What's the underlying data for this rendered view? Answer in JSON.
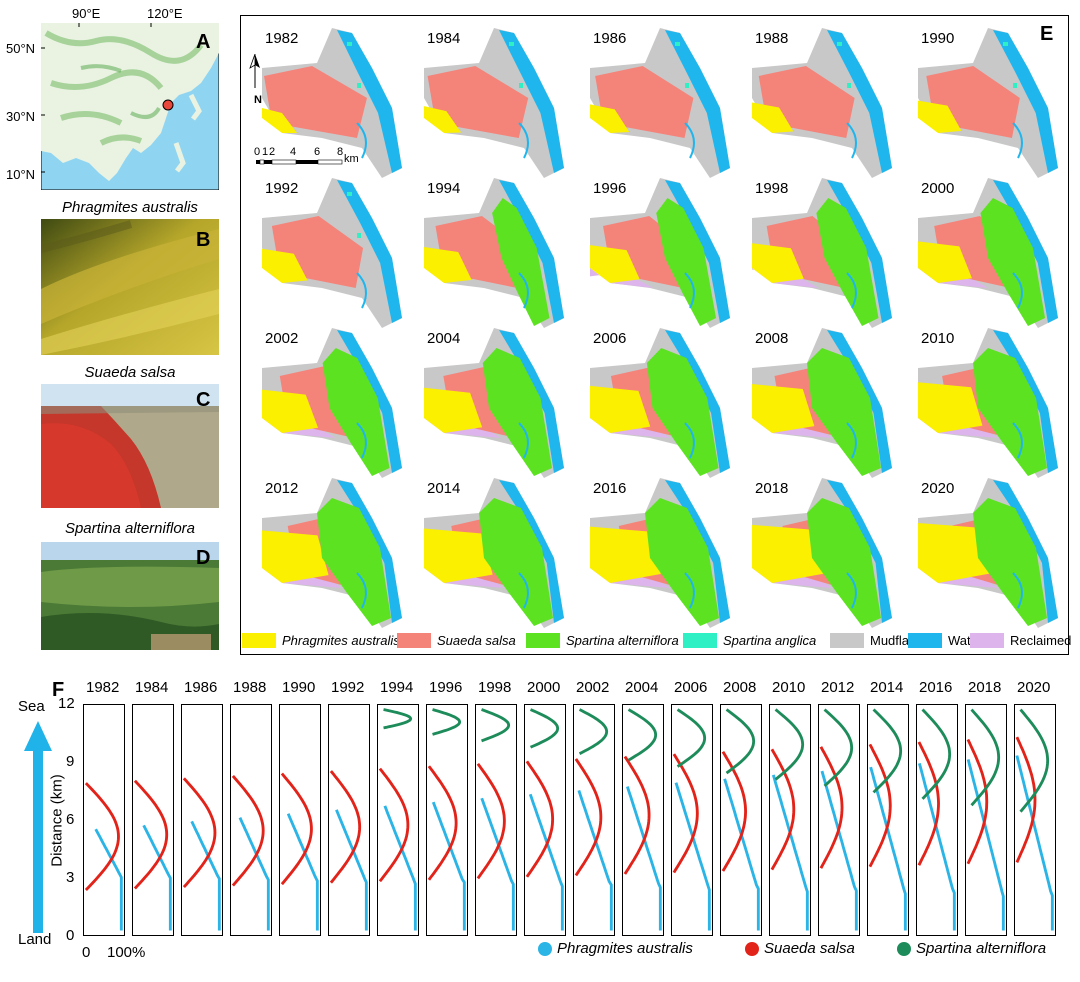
{
  "panel_a": {
    "letter": "A",
    "lon_labels": [
      "90°E",
      "120°E"
    ],
    "lat_labels": [
      "50°N",
      "30°N",
      "10°N"
    ]
  },
  "panel_b": {
    "letter": "B",
    "caption": "Phragmites australis"
  },
  "panel_c": {
    "letter": "C",
    "caption": "Suaeda salsa"
  },
  "panel_d": {
    "letter": "D",
    "caption": "Spartina alterniflora"
  },
  "panel_e": {
    "letter": "E",
    "years": [
      "1982",
      "1984",
      "1986",
      "1988",
      "1990",
      "1992",
      "1994",
      "1996",
      "1998",
      "2000",
      "2002",
      "2004",
      "2006",
      "2008",
      "2010",
      "2012",
      "2014",
      "2016",
      "2018",
      "2020"
    ],
    "north": "N",
    "scale_ticks": [
      "0",
      "1",
      "2",
      "4",
      "6",
      "8"
    ],
    "scale_unit": "km",
    "legend": [
      {
        "label": "Phragmites australis",
        "color": "#fbf000",
        "italic": true
      },
      {
        "label": "Suaeda salsa",
        "color": "#f4837a",
        "italic": true
      },
      {
        "label": "Spartina alterniflora",
        "color": "#5ce221",
        "italic": true
      },
      {
        "label": "Spartina anglica",
        "color": "#2ff0c4",
        "italic": true
      },
      {
        "label": "Mudflat",
        "color": "#c8c8c8",
        "italic": false
      },
      {
        "label": "Water",
        "color": "#1fb6ee",
        "italic": false
      },
      {
        "label": "Reclaimed",
        "color": "#ddb4ec",
        "italic": false
      }
    ]
  },
  "panel_f": {
    "letter": "F",
    "years": [
      "1982",
      "1984",
      "1986",
      "1988",
      "1990",
      "1992",
      "1994",
      "1996",
      "1998",
      "2000",
      "2002",
      "2004",
      "2006",
      "2008",
      "2010",
      "2012",
      "2014",
      "2016",
      "2018",
      "2020"
    ],
    "y_axis_label": "Distance (km)",
    "y_ticks": [
      "0",
      "3",
      "6",
      "9",
      "12"
    ],
    "sea_label": "Sea",
    "land_label": "Land",
    "x_min_label": "0",
    "x_max_label": "100%",
    "legend": [
      {
        "label": "Phragmites australis",
        "color": "#2bb4e6"
      },
      {
        "label": "Suaeda salsa",
        "color": "#e2231a"
      },
      {
        "label": "Spartina alterniflora",
        "color": "#1e8c5a"
      }
    ]
  }
}
